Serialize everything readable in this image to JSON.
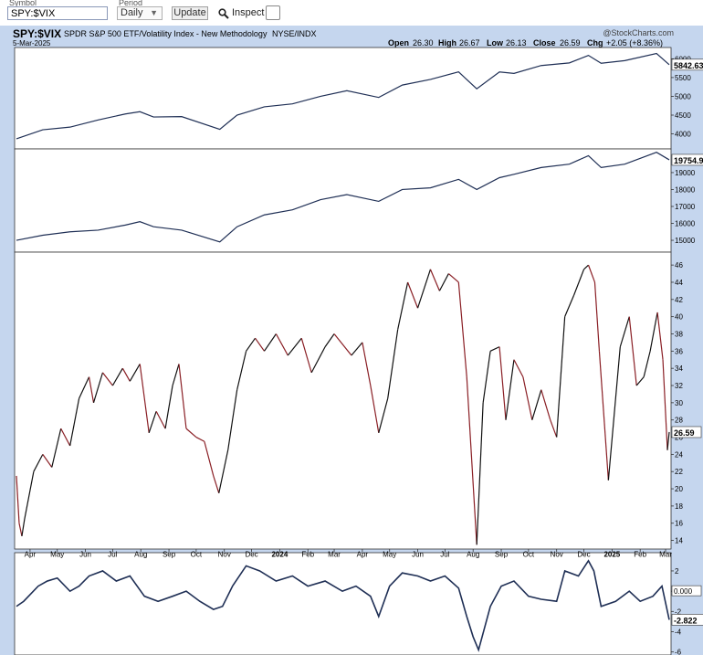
{
  "toolbar": {
    "symbol_caption": "Symbol",
    "symbol_value": "SPY:$VIX",
    "period_caption": "Period",
    "period_value": "Daily",
    "update_label": "Update",
    "inspect_label": "Inspect"
  },
  "header": {
    "ticker": "SPY:$VIX",
    "description": "SPDR S&P 500 ETF/Volatility Index - New Methodology",
    "exchange": "NYSE/INDX",
    "date": "5-Mar-2025",
    "watermark": "@StockCharts.com",
    "open_label": "Open",
    "open_value": "26.30",
    "high_label": "High",
    "high_value": "26.67",
    "low_label": "Low",
    "low_value": "26.13",
    "close_label": "Close",
    "close_value": "26.59",
    "chg_label": "Chg",
    "chg_value": "+2.05 (+8.36%)"
  },
  "colors": {
    "background": "#c5d6ee",
    "panel": "#ffffff",
    "line_navy": "#1f2f55",
    "ratio_up": "#111111",
    "ratio_down": "#8a1f25",
    "last_label_bg": "#ffffff"
  },
  "chart_data": [
    {
      "panel": "spx-index",
      "type": "line",
      "ylim": [
        3600,
        6300
      ],
      "y_ticks": [
        4000,
        4500,
        5000,
        5500,
        6000
      ],
      "last_value_label": "5842.63",
      "x": [
        "2023-03-17",
        "2023-04-15",
        "2023-05-15",
        "2023-06-15",
        "2023-07-15",
        "2023-07-31",
        "2023-08-15",
        "2023-09-15",
        "2023-10-27",
        "2023-11-15",
        "2023-12-15",
        "2024-01-15",
        "2024-02-15",
        "2024-03-15",
        "2024-04-19",
        "2024-05-15",
        "2024-06-15",
        "2024-07-16",
        "2024-08-05",
        "2024-08-30",
        "2024-09-15",
        "2024-10-15",
        "2024-11-15",
        "2024-12-06",
        "2024-12-20",
        "2025-01-15",
        "2025-02-19",
        "2025-03-05"
      ],
      "values": [
        3870,
        4110,
        4180,
        4370,
        4530,
        4590,
        4450,
        4460,
        4120,
        4500,
        4720,
        4800,
        5000,
        5150,
        4970,
        5300,
        5450,
        5650,
        5200,
        5650,
        5610,
        5820,
        5890,
        6090,
        5880,
        5950,
        6140,
        5842.63
      ]
    },
    {
      "panel": "middle-index",
      "type": "line",
      "ylim": [
        14300,
        20400
      ],
      "y_ticks": [
        15000,
        16000,
        17000,
        18000,
        19000
      ],
      "last_value_label": "19754.9",
      "x": [
        "2023-03-17",
        "2023-04-15",
        "2023-05-15",
        "2023-06-15",
        "2023-07-15",
        "2023-07-31",
        "2023-08-15",
        "2023-09-15",
        "2023-10-27",
        "2023-11-15",
        "2023-12-15",
        "2024-01-15",
        "2024-02-15",
        "2024-03-15",
        "2024-04-19",
        "2024-05-15",
        "2024-06-15",
        "2024-07-16",
        "2024-08-05",
        "2024-08-30",
        "2024-09-15",
        "2024-10-15",
        "2024-11-15",
        "2024-12-06",
        "2024-12-20",
        "2025-01-15",
        "2025-02-19",
        "2025-03-05"
      ],
      "values": [
        15000,
        15300,
        15500,
        15600,
        15900,
        16100,
        15800,
        15600,
        14900,
        15800,
        16500,
        16800,
        17400,
        17700,
        17300,
        18000,
        18100,
        18600,
        18000,
        18700,
        18900,
        19300,
        19500,
        20000,
        19300,
        19500,
        20200,
        19754.9
      ]
    },
    {
      "panel": "ratio-main",
      "type": "line",
      "ylim": [
        13,
        47.5
      ],
      "y_ticks": [
        14,
        16,
        18,
        20,
        22,
        24,
        26,
        28,
        30,
        32,
        34,
        36,
        38,
        40,
        42,
        44,
        46
      ],
      "last_value_label": "26.59",
      "x": [
        "2023-03-17",
        "2023-03-20",
        "2023-03-23",
        "2023-03-26",
        "2023-04-05",
        "2023-04-15",
        "2023-04-25",
        "2023-05-05",
        "2023-05-15",
        "2023-05-25",
        "2023-06-05",
        "2023-06-10",
        "2023-06-20",
        "2023-07-01",
        "2023-07-12",
        "2023-07-20",
        "2023-07-31",
        "2023-08-10",
        "2023-08-18",
        "2023-08-28",
        "2023-09-05",
        "2023-09-12",
        "2023-09-20",
        "2023-10-01",
        "2023-10-10",
        "2023-10-20",
        "2023-10-26",
        "2023-11-05",
        "2023-11-15",
        "2023-11-25",
        "2023-12-05",
        "2023-12-15",
        "2023-12-28",
        "2024-01-10",
        "2024-01-25",
        "2024-02-05",
        "2024-02-20",
        "2024-03-01",
        "2024-03-20",
        "2024-04-01",
        "2024-04-10",
        "2024-04-19",
        "2024-04-29",
        "2024-05-10",
        "2024-05-21",
        "2024-06-01",
        "2024-06-15",
        "2024-06-25",
        "2024-07-05",
        "2024-07-16",
        "2024-07-25",
        "2024-08-05",
        "2024-08-12",
        "2024-08-20",
        "2024-08-30",
        "2024-09-06",
        "2024-09-15",
        "2024-09-25",
        "2024-10-05",
        "2024-10-15",
        "2024-10-25",
        "2024-11-01",
        "2024-11-10",
        "2024-11-20",
        "2024-12-01",
        "2024-12-06",
        "2024-12-13",
        "2024-12-18",
        "2024-12-28",
        "2025-01-10",
        "2025-01-20",
        "2025-01-28",
        "2025-02-05",
        "2025-02-12",
        "2025-02-20",
        "2025-02-26",
        "2025-03-03",
        "2025-03-05"
      ],
      "values": [
        21.5,
        16.0,
        14.5,
        16.5,
        22.0,
        24.0,
        22.5,
        27.0,
        25.0,
        30.5,
        33.0,
        30.0,
        33.5,
        32.0,
        34.0,
        32.5,
        34.5,
        26.5,
        29.0,
        27.0,
        32.0,
        34.5,
        27.0,
        26.0,
        25.5,
        21.5,
        19.5,
        24.5,
        31.5,
        36.0,
        37.5,
        36.0,
        38.0,
        35.5,
        37.5,
        33.5,
        36.5,
        38.0,
        35.5,
        37.0,
        32.0,
        26.5,
        30.5,
        38.5,
        44.0,
        41.0,
        45.5,
        43.0,
        45.0,
        44.0,
        33.0,
        13.5,
        30.0,
        36.0,
        36.5,
        28.0,
        35.0,
        33.0,
        28.0,
        31.5,
        28.0,
        26.0,
        40.0,
        42.5,
        45.5,
        46.0,
        44.0,
        36.0,
        21.0,
        36.5,
        40.0,
        32.0,
        33.0,
        36.0,
        40.5,
        35.0,
        24.5,
        26.59
      ]
    },
    {
      "panel": "oscillator",
      "type": "line",
      "ylim": [
        -6.3,
        3.8
      ],
      "y_ticks": [
        -6,
        -4,
        -2,
        0,
        2
      ],
      "last_value_label": "-2.822",
      "zero_value_label": "0.000",
      "x": [
        "2023-03-17",
        "2023-03-25",
        "2023-04-10",
        "2023-04-20",
        "2023-05-01",
        "2023-05-15",
        "2023-05-25",
        "2023-06-05",
        "2023-06-20",
        "2023-07-05",
        "2023-07-20",
        "2023-08-05",
        "2023-08-20",
        "2023-09-05",
        "2023-09-20",
        "2023-10-05",
        "2023-10-20",
        "2023-10-30",
        "2023-11-10",
        "2023-11-25",
        "2023-12-10",
        "2023-12-28",
        "2024-01-15",
        "2024-02-01",
        "2024-02-20",
        "2024-03-10",
        "2024-03-25",
        "2024-04-10",
        "2024-04-19",
        "2024-05-01",
        "2024-05-15",
        "2024-06-01",
        "2024-06-15",
        "2024-07-01",
        "2024-07-16",
        "2024-07-25",
        "2024-08-01",
        "2024-08-07",
        "2024-08-20",
        "2024-09-01",
        "2024-09-15",
        "2024-10-01",
        "2024-10-15",
        "2024-11-01",
        "2024-11-10",
        "2024-11-25",
        "2024-12-06",
        "2024-12-12",
        "2024-12-20",
        "2025-01-05",
        "2025-01-20",
        "2025-02-01",
        "2025-02-15",
        "2025-02-25",
        "2025-03-05"
      ],
      "values": [
        -1.5,
        -1.0,
        0.5,
        1.0,
        1.3,
        0.0,
        0.5,
        1.5,
        2.0,
        1.0,
        1.5,
        -0.5,
        -1.0,
        -0.5,
        0.0,
        -1.0,
        -1.8,
        -1.5,
        0.5,
        2.5,
        2.0,
        1.0,
        1.5,
        0.5,
        1.0,
        0.0,
        0.5,
        -0.5,
        -2.5,
        0.5,
        1.8,
        1.5,
        1.0,
        1.5,
        0.3,
        -2.5,
        -4.5,
        -5.8,
        -1.5,
        0.5,
        1.0,
        -0.5,
        -0.8,
        -1.0,
        2.0,
        1.5,
        3.0,
        2.0,
        -1.5,
        -1.0,
        0.0,
        -1.0,
        -0.5,
        0.5,
        -2.822
      ]
    }
  ],
  "x_axis": {
    "labels": [
      {
        "text": "Apr",
        "date": "2023-04-01"
      },
      {
        "text": "May",
        "date": "2023-05-01"
      },
      {
        "text": "Jun",
        "date": "2023-06-01"
      },
      {
        "text": "Jul",
        "date": "2023-07-01"
      },
      {
        "text": "Aug",
        "date": "2023-08-01"
      },
      {
        "text": "Sep",
        "date": "2023-09-01"
      },
      {
        "text": "Oct",
        "date": "2023-10-01"
      },
      {
        "text": "Nov",
        "date": "2023-11-01"
      },
      {
        "text": "Dec",
        "date": "2023-12-01"
      },
      {
        "text": "2024",
        "date": "2024-01-01",
        "bold": true
      },
      {
        "text": "Feb",
        "date": "2024-02-01"
      },
      {
        "text": "Mar",
        "date": "2024-03-01"
      },
      {
        "text": "Apr",
        "date": "2024-04-01"
      },
      {
        "text": "May",
        "date": "2024-05-01"
      },
      {
        "text": "Jun",
        "date": "2024-06-01"
      },
      {
        "text": "Jul",
        "date": "2024-07-01"
      },
      {
        "text": "Aug",
        "date": "2024-08-01"
      },
      {
        "text": "Sep",
        "date": "2024-09-01"
      },
      {
        "text": "Oct",
        "date": "2024-10-01"
      },
      {
        "text": "Nov",
        "date": "2024-11-01"
      },
      {
        "text": "Dec",
        "date": "2024-12-01"
      },
      {
        "text": "2025",
        "date": "2025-01-01",
        "bold": true
      },
      {
        "text": "Feb",
        "date": "2025-02-01"
      },
      {
        "text": "Mar",
        "date": "2025-03-01"
      }
    ],
    "range": [
      "2023-03-15",
      "2025-03-07"
    ]
  }
}
